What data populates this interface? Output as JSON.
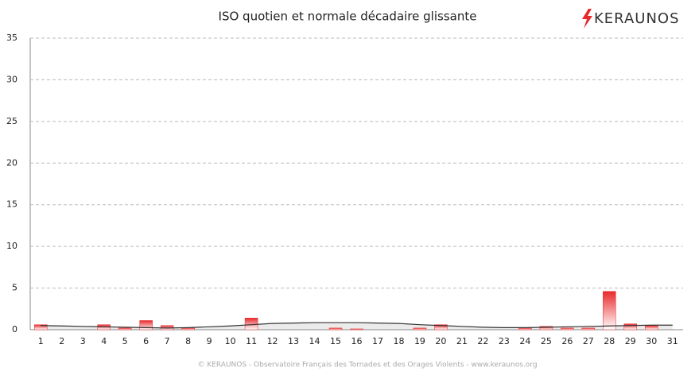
{
  "chart_data": {
    "type": "bar",
    "title": "ISO quotien et normale décadaire glissante",
    "logo": "KERAUNOS",
    "footer": "© KERAUNOS - Observatoire Français des Tornades et des Orages Violents - www.keraunos.org",
    "categories": [
      "1",
      "2",
      "3",
      "4",
      "5",
      "6",
      "7",
      "8",
      "9",
      "10",
      "11",
      "12",
      "13",
      "14",
      "15",
      "16",
      "17",
      "18",
      "19",
      "20",
      "21",
      "22",
      "23",
      "24",
      "25",
      "26",
      "27",
      "28",
      "29",
      "30",
      "31"
    ],
    "series": [
      {
        "name": "ISO quotien",
        "type": "bar",
        "color": "#e8292b",
        "values": [
          0.6,
          0,
          0,
          0.6,
          0.2,
          1.1,
          0.5,
          0.2,
          0,
          0,
          1.4,
          0,
          0,
          0,
          0.2,
          0.1,
          0,
          0,
          0.2,
          0.6,
          0,
          0,
          0,
          0.2,
          0.4,
          0.2,
          0.2,
          4.6,
          0.7,
          0.5,
          0
        ]
      },
      {
        "name": "normale décadaire glissante",
        "type": "line",
        "color": "#333333",
        "values": [
          0.5,
          0.45,
          0.4,
          0.35,
          0.3,
          0.25,
          0.2,
          0.25,
          0.35,
          0.45,
          0.6,
          0.75,
          0.8,
          0.85,
          0.85,
          0.85,
          0.8,
          0.75,
          0.6,
          0.5,
          0.4,
          0.3,
          0.25,
          0.25,
          0.3,
          0.35,
          0.4,
          0.45,
          0.5,
          0.55,
          0.55
        ]
      }
    ],
    "ylim": [
      0,
      35
    ],
    "yticks": [
      0,
      5,
      10,
      15,
      20,
      25,
      30,
      35
    ],
    "grid": true
  }
}
